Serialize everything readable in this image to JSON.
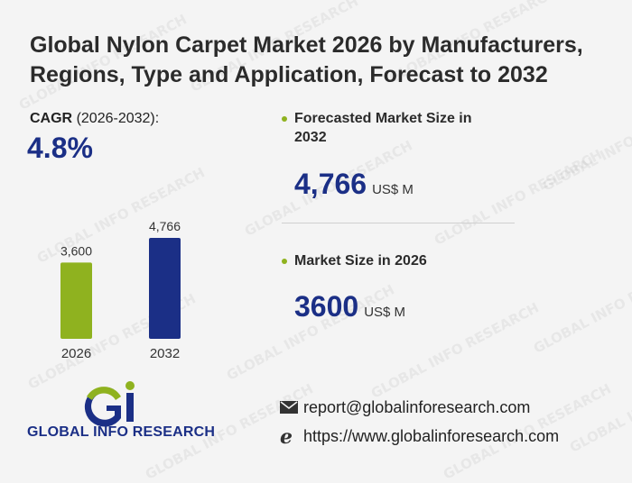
{
  "watermark_text": "GLOBAL INFO RESEARCH",
  "title": "Global Nylon Carpet Market 2026 by Manufacturers, Regions, Type and Application, Forecast to 2032",
  "cagr": {
    "label_bold": "CAGR",
    "period": "(2026-2032):",
    "value": "4.8%"
  },
  "forecast": {
    "label": "Forecasted Market Size in 2032",
    "value": "4,766",
    "unit": "US$ M"
  },
  "current": {
    "label": "Market Size in 2026",
    "value": "3600",
    "unit": "US$ M"
  },
  "logo": {
    "text": "GLOBAL INFO RESEARCH"
  },
  "contact": {
    "email": "report@globalinforesearch.com",
    "website": "https://www.globalinforesearch.com"
  },
  "colors": {
    "accent_green": "#8fb21f",
    "accent_blue": "#1b2f86"
  },
  "chart_data": {
    "type": "bar",
    "categories": [
      "2026",
      "2032"
    ],
    "values": [
      3600,
      4766
    ],
    "data_labels": [
      "3,600",
      "4,766"
    ],
    "colors": [
      "#8fb21f",
      "#1b2f86"
    ],
    "title": "",
    "xlabel": "",
    "ylabel": "",
    "ylim": [
      0,
      4766
    ]
  }
}
